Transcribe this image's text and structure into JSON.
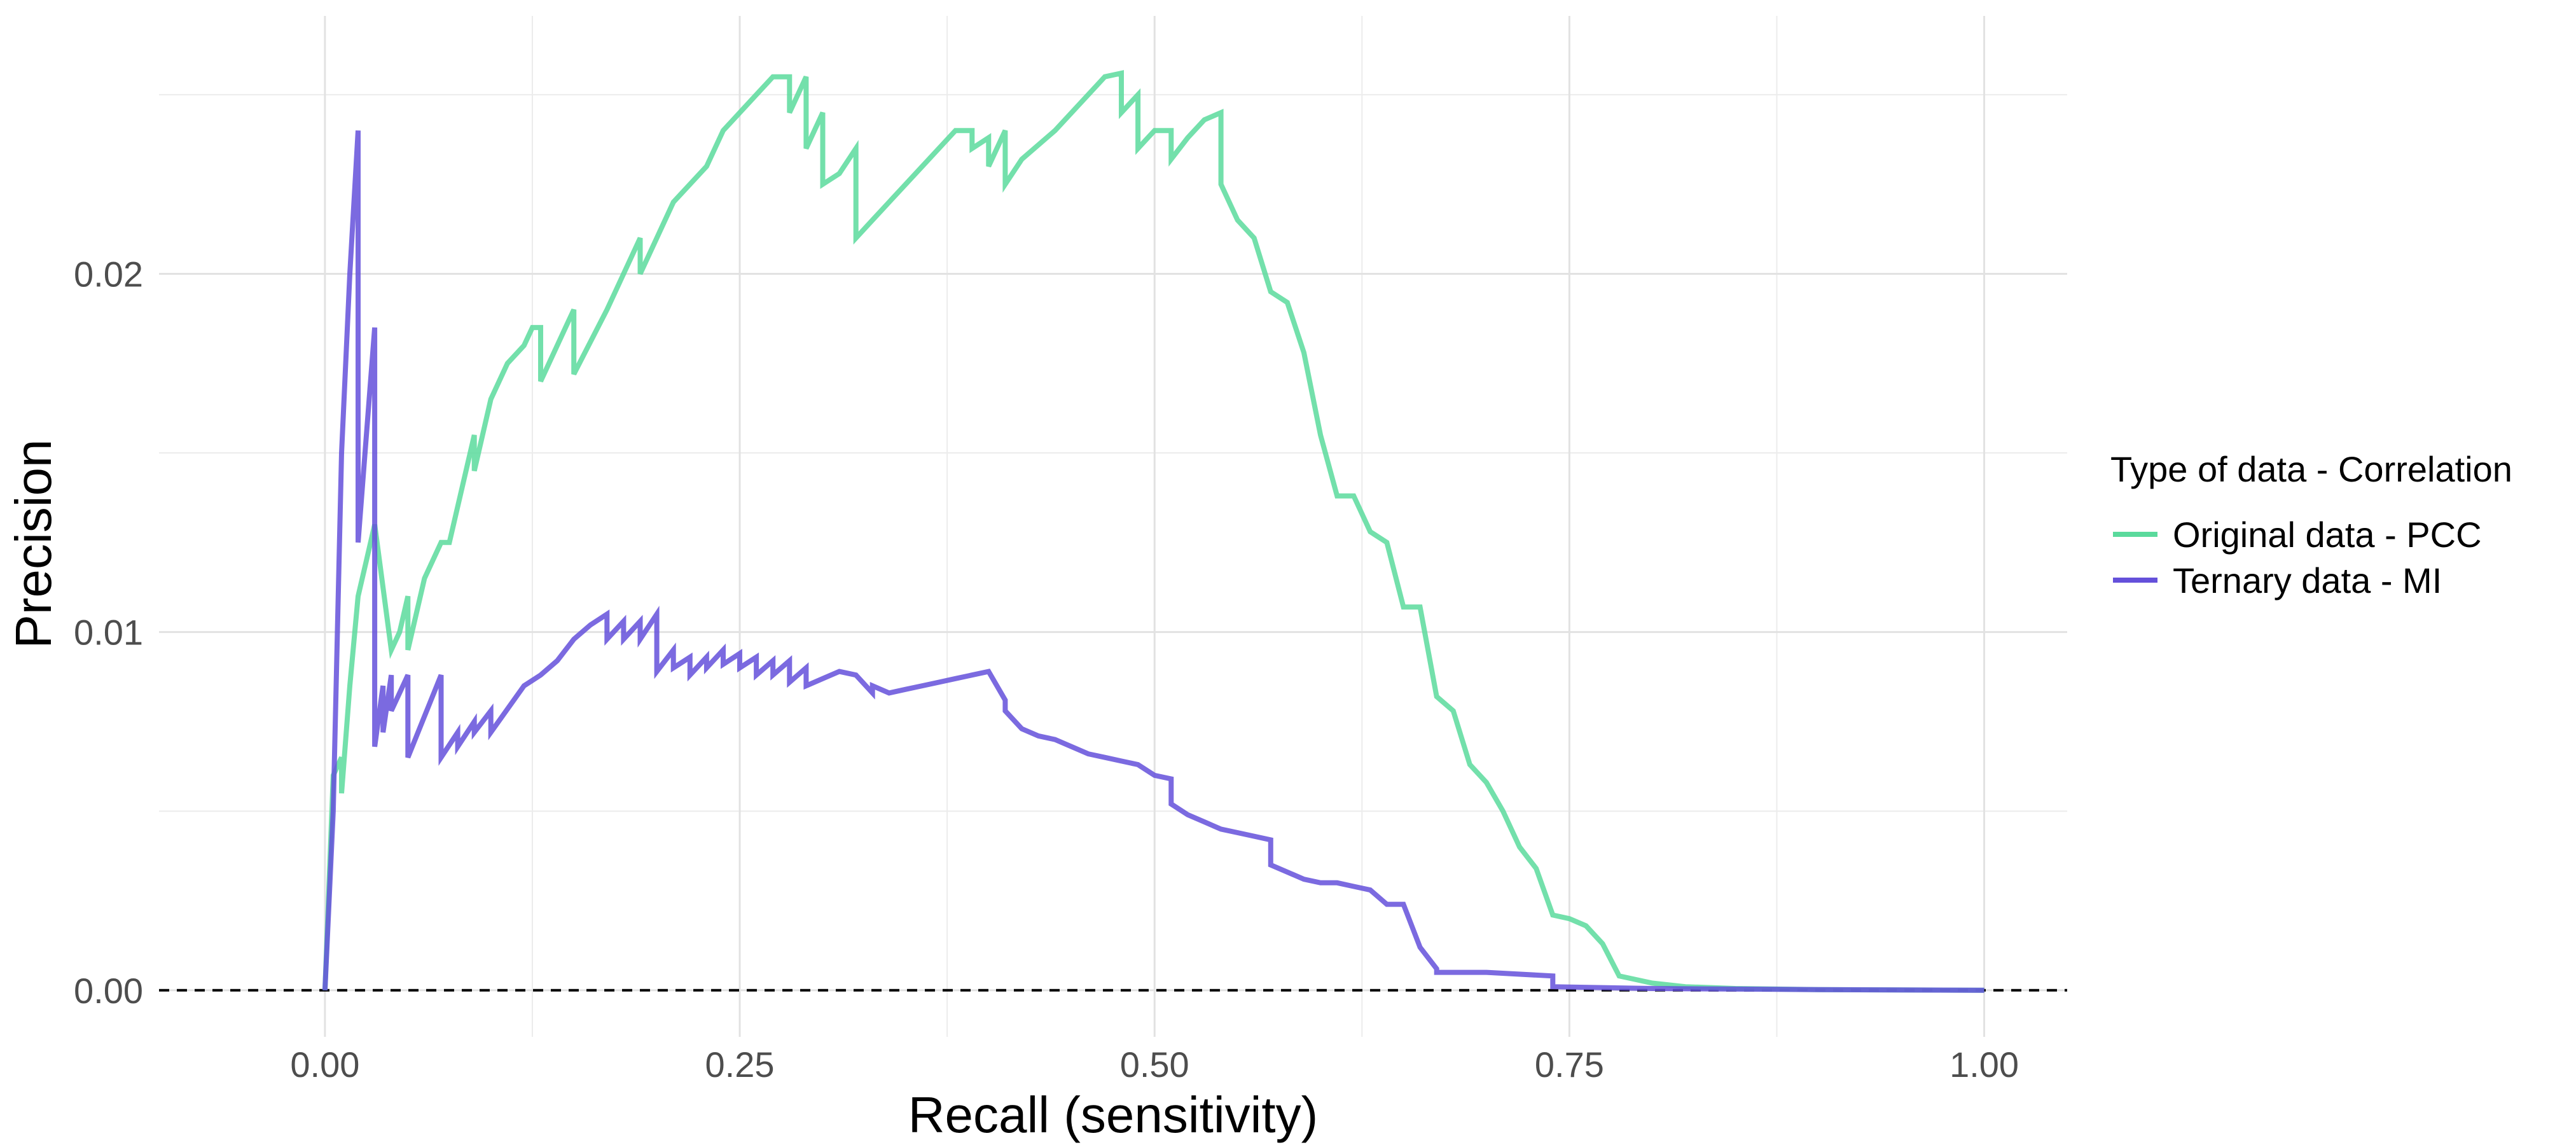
{
  "chart_data": {
    "type": "line",
    "title": "",
    "xlabel": "Recall (sensitivity)",
    "ylabel": "Precision",
    "xlim": [
      -0.1,
      1.05
    ],
    "ylim": [
      -0.0013,
      0.0272
    ],
    "x_ticks": [
      {
        "value": 0.0,
        "label": "0.00"
      },
      {
        "value": 0.25,
        "label": "0.25"
      },
      {
        "value": 0.5,
        "label": "0.50"
      },
      {
        "value": 0.75,
        "label": "0.75"
      },
      {
        "value": 1.0,
        "label": "1.00"
      }
    ],
    "y_ticks": [
      {
        "value": 0.0,
        "label": "0.00"
      },
      {
        "value": 0.01,
        "label": "0.01"
      },
      {
        "value": 0.02,
        "label": "0.02"
      }
    ],
    "grid": true,
    "reference_line": {
      "y": 0.0,
      "style": "dashed",
      "color": "#000000"
    },
    "legend": {
      "title": "Type of data - Correlation",
      "position": "right"
    },
    "series": [
      {
        "name": "Original data - PCC",
        "color": "#5ADA9C",
        "x": [
          0.0,
          0.005,
          0.01,
          0.01,
          0.015,
          0.02,
          0.025,
          0.03,
          0.04,
          0.045,
          0.05,
          0.05,
          0.06,
          0.07,
          0.075,
          0.09,
          0.09,
          0.1,
          0.11,
          0.12,
          0.125,
          0.13,
          0.13,
          0.14,
          0.145,
          0.15,
          0.15,
          0.17,
          0.18,
          0.19,
          0.19,
          0.2,
          0.21,
          0.23,
          0.24,
          0.25,
          0.26,
          0.27,
          0.28,
          0.28,
          0.29,
          0.29,
          0.3,
          0.3,
          0.31,
          0.32,
          0.32,
          0.33,
          0.34,
          0.36,
          0.38,
          0.39,
          0.39,
          0.4,
          0.4,
          0.41,
          0.41,
          0.42,
          0.44,
          0.46,
          0.47,
          0.48,
          0.48,
          0.49,
          0.49,
          0.5,
          0.51,
          0.51,
          0.52,
          0.53,
          0.54,
          0.54,
          0.55,
          0.56,
          0.57,
          0.58,
          0.59,
          0.6,
          0.61,
          0.62,
          0.63,
          0.64,
          0.65,
          0.66,
          0.67,
          0.68,
          0.69,
          0.7,
          0.71,
          0.72,
          0.73,
          0.74,
          0.75,
          0.76,
          0.77,
          0.78,
          0.79,
          0.8,
          0.82,
          0.85,
          0.9,
          1.0
        ],
        "y": [
          0.0,
          0.006,
          0.0065,
          0.0055,
          0.0085,
          0.011,
          0.012,
          0.013,
          0.0095,
          0.01,
          0.011,
          0.0095,
          0.0115,
          0.0125,
          0.0125,
          0.0155,
          0.0145,
          0.0165,
          0.0175,
          0.018,
          0.0185,
          0.0185,
          0.017,
          0.018,
          0.0185,
          0.019,
          0.0172,
          0.019,
          0.02,
          0.021,
          0.02,
          0.021,
          0.022,
          0.023,
          0.024,
          0.0245,
          0.025,
          0.0255,
          0.0255,
          0.0245,
          0.0255,
          0.0235,
          0.0245,
          0.0225,
          0.0228,
          0.0235,
          0.021,
          0.0215,
          0.022,
          0.023,
          0.024,
          0.024,
          0.0235,
          0.0238,
          0.023,
          0.024,
          0.0225,
          0.0232,
          0.024,
          0.025,
          0.0255,
          0.0256,
          0.0245,
          0.025,
          0.0235,
          0.024,
          0.024,
          0.0232,
          0.0238,
          0.0243,
          0.0245,
          0.0225,
          0.0215,
          0.021,
          0.0195,
          0.0192,
          0.0178,
          0.0155,
          0.0138,
          0.0138,
          0.0128,
          0.0125,
          0.0107,
          0.0107,
          0.0082,
          0.0078,
          0.0063,
          0.0058,
          0.005,
          0.004,
          0.0034,
          0.0021,
          0.002,
          0.0018,
          0.0013,
          0.0004,
          0.0003,
          0.0002,
          0.0001,
          5e-05,
          2e-05,
          0.0
        ]
      },
      {
        "name": "Ternary data - MI",
        "color": "#6450DA",
        "x": [
          0.0,
          0.005,
          0.01,
          0.015,
          0.02,
          0.02,
          0.03,
          0.03,
          0.035,
          0.035,
          0.04,
          0.04,
          0.05,
          0.05,
          0.07,
          0.07,
          0.08,
          0.08,
          0.09,
          0.09,
          0.1,
          0.1,
          0.12,
          0.13,
          0.14,
          0.15,
          0.16,
          0.17,
          0.17,
          0.18,
          0.18,
          0.19,
          0.19,
          0.2,
          0.2,
          0.21,
          0.21,
          0.22,
          0.22,
          0.23,
          0.23,
          0.24,
          0.24,
          0.25,
          0.25,
          0.26,
          0.26,
          0.27,
          0.27,
          0.28,
          0.28,
          0.29,
          0.29,
          0.3,
          0.31,
          0.32,
          0.33,
          0.33,
          0.34,
          0.35,
          0.36,
          0.37,
          0.38,
          0.39,
          0.4,
          0.41,
          0.41,
          0.42,
          0.43,
          0.44,
          0.45,
          0.46,
          0.47,
          0.48,
          0.49,
          0.5,
          0.51,
          0.51,
          0.52,
          0.53,
          0.54,
          0.55,
          0.56,
          0.57,
          0.57,
          0.58,
          0.59,
          0.6,
          0.61,
          0.62,
          0.63,
          0.64,
          0.65,
          0.66,
          0.67,
          0.67,
          0.7,
          0.74,
          0.74,
          0.8,
          0.9,
          1.0
        ],
        "y": [
          0.0,
          0.005,
          0.015,
          0.02,
          0.024,
          0.0125,
          0.0185,
          0.0068,
          0.0085,
          0.0072,
          0.0088,
          0.0078,
          0.0088,
          0.0065,
          0.0088,
          0.0065,
          0.0072,
          0.0068,
          0.0075,
          0.0072,
          0.0078,
          0.0072,
          0.0085,
          0.0088,
          0.0092,
          0.0098,
          0.0102,
          0.0105,
          0.0098,
          0.0103,
          0.0098,
          0.0103,
          0.0098,
          0.0105,
          0.0089,
          0.0095,
          0.009,
          0.0093,
          0.0088,
          0.0093,
          0.009,
          0.0095,
          0.0091,
          0.0094,
          0.009,
          0.0093,
          0.0088,
          0.0092,
          0.0088,
          0.0092,
          0.0086,
          0.009,
          0.0085,
          0.0087,
          0.0089,
          0.0088,
          0.0083,
          0.0085,
          0.0083,
          0.0084,
          0.0085,
          0.0086,
          0.0087,
          0.0088,
          0.0089,
          0.0081,
          0.0078,
          0.0073,
          0.0071,
          0.007,
          0.0068,
          0.0066,
          0.0065,
          0.0064,
          0.0063,
          0.006,
          0.0059,
          0.0052,
          0.0049,
          0.0047,
          0.0045,
          0.0044,
          0.0043,
          0.0042,
          0.0035,
          0.0033,
          0.0031,
          0.003,
          0.003,
          0.0029,
          0.0028,
          0.0024,
          0.0024,
          0.0012,
          0.0006,
          0.0005,
          0.0005,
          0.0004,
          0.0001,
          5e-05,
          2e-05,
          0.0
        ]
      }
    ]
  }
}
